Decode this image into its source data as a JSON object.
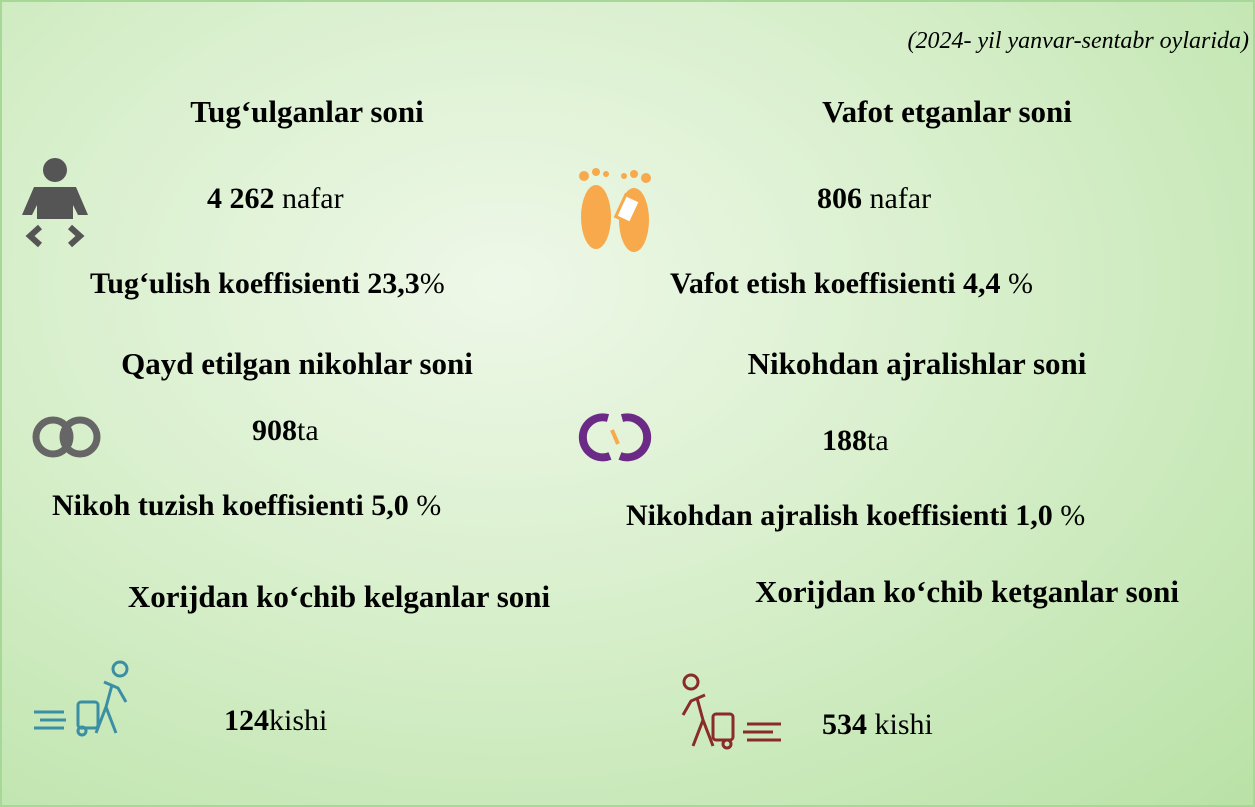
{
  "subtitle": "(2024- yil yanvar-sentabr oylarida)",
  "sections": [
    {
      "title": "Tug‘ulganlar soni",
      "value": "4 262",
      "unit": "nafar"
    },
    {
      "title": "Vafot etganlar soni",
      "value": "806",
      "unit": "nafar"
    },
    {
      "title": "Qayd etilgan nikohlar soni",
      "value": "908",
      "unit": "ta"
    },
    {
      "title": "Nikohdan ajralishlar soni",
      "value": "188",
      "unit": "ta"
    },
    {
      "title": "Xorijdan ko‘chib kelganlar soni",
      "value": "124",
      "unit": "kishi"
    },
    {
      "title": "Xorijdan ko‘chib ketganlar soni",
      "value": "534",
      "unit": "kishi"
    }
  ],
  "coefficients": [
    {
      "label": "Tug‘ulish koeffisienti",
      "value": "23,3",
      "unit": "%"
    },
    {
      "label": "Vafot etish koeffisienti",
      "value": "4,4",
      "unit": "%"
    },
    {
      "label": "Nikoh tuzish koeffisienti",
      "value": "5,0",
      "unit": "%"
    },
    {
      "label": "Nikohdan ajralish koeffisienti",
      "value": "1,0",
      "unit": "%"
    }
  ]
}
